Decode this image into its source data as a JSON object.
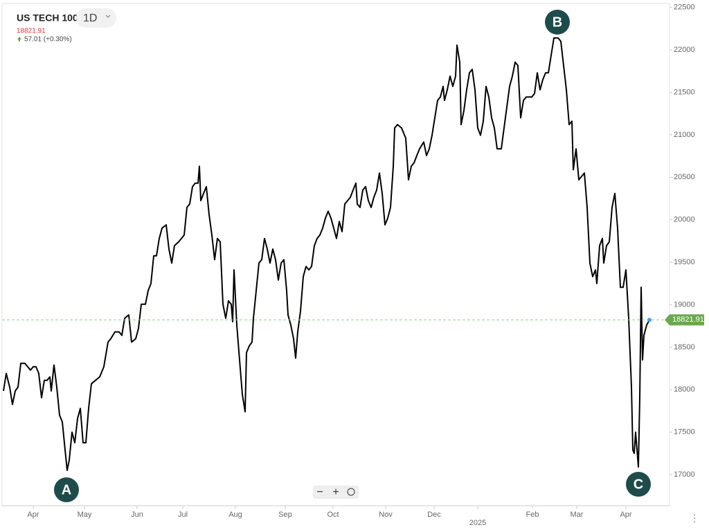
{
  "chart_data": {
    "type": "line",
    "title": "US TECH 100",
    "interval": "1D",
    "last_price": 18821.91,
    "change": "57.01 (+0.30%)",
    "color": "#000000",
    "grid": false,
    "x": [
      5,
      9,
      14,
      18,
      22,
      26,
      30,
      36,
      40,
      44,
      48,
      52,
      56,
      60,
      64,
      68,
      72,
      74,
      78,
      82,
      86,
      90,
      94,
      97,
      100,
      104,
      108,
      112,
      116,
      120,
      124,
      128,
      132,
      138,
      144,
      150,
      156,
      160,
      166,
      172,
      176,
      180,
      186,
      190,
      196,
      200,
      204,
      210,
      214,
      218,
      222,
      226,
      230,
      234,
      240,
      244,
      248,
      252,
      258,
      262,
      266,
      270,
      274,
      278,
      282,
      286,
      288,
      290,
      294,
      298,
      302,
      306,
      310,
      314,
      318,
      322,
      326,
      330,
      334,
      336,
      338,
      342,
      346,
      350,
      354,
      356,
      360,
      364,
      366,
      370,
      374,
      378,
      382,
      386,
      390,
      394,
      398,
      402,
      406,
      410,
      414,
      416,
      420,
      424,
      427,
      430,
      434,
      438,
      442,
      446,
      450,
      454,
      458,
      462,
      466,
      470,
      474,
      478,
      482,
      486,
      490,
      494,
      498,
      502,
      506,
      510,
      514,
      516,
      520,
      524,
      528,
      532,
      536,
      540,
      544,
      548,
      552,
      556,
      560,
      564,
      568,
      570,
      574,
      580,
      586,
      590,
      594,
      598,
      602,
      606,
      612,
      616,
      620,
      624,
      628,
      632,
      636,
      640,
      642,
      646,
      650,
      654,
      658,
      660,
      664,
      666,
      670,
      674,
      678,
      682,
      686,
      690,
      694,
      698,
      702,
      706,
      710,
      714,
      718,
      722,
      724,
      728,
      732,
      736,
      740,
      744,
      748,
      752,
      756,
      760,
      764,
      768,
      772,
      776,
      780,
      784,
      788,
      792,
      796,
      800,
      806,
      810,
      814,
      818,
      822,
      826,
      828,
      832,
      836,
      840,
      844,
      848,
      852,
      856,
      860,
      862,
      866,
      870,
      872,
      876,
      880,
      884,
      888,
      892,
      896,
      900,
      904,
      908,
      912,
      914,
      916,
      918,
      922,
      924,
      926,
      928,
      930,
      934,
      938
    ],
    "values": [
      17985,
      18190,
      18030,
      17825,
      17985,
      18030,
      18310,
      18310,
      18270,
      18230,
      18270,
      18270,
      18190,
      17905,
      18110,
      18110,
      18150,
      17985,
      18290,
      18030,
      17700,
      17620,
      17290,
      17050,
      17170,
      17500,
      17375,
      17660,
      17780,
      17375,
      17375,
      17780,
      18070,
      18110,
      18150,
      18270,
      18560,
      18600,
      18680,
      18680,
      18640,
      18840,
      18880,
      18560,
      18600,
      18720,
      19005,
      19005,
      19165,
      19250,
      19575,
      19575,
      19780,
      19900,
      19940,
      19655,
      19490,
      19695,
      19740,
      19780,
      19820,
      20145,
      20185,
      20390,
      20430,
      20430,
      20630,
      20225,
      20310,
      20390,
      20060,
      19820,
      19530,
      19780,
      19740,
      19005,
      18840,
      19045,
      19005,
      18800,
      19410,
      18760,
      18350,
      17945,
      17740,
      18435,
      18515,
      18560,
      18840,
      19165,
      19490,
      19530,
      19780,
      19655,
      19490,
      19655,
      19530,
      19290,
      19490,
      19530,
      19165,
      18880,
      18760,
      18600,
      18370,
      18680,
      18925,
      19330,
      19450,
      19410,
      19450,
      19695,
      19780,
      19820,
      19900,
      20020,
      20100,
      20020,
      19900,
      19780,
      19980,
      19860,
      20185,
      20225,
      20265,
      20350,
      20430,
      20185,
      20145,
      20350,
      20390,
      20225,
      20145,
      20265,
      20350,
      20550,
      20310,
      19940,
      20020,
      20145,
      20630,
      21080,
      21120,
      21080,
      20960,
      20470,
      20630,
      20670,
      20755,
      20835,
      20915,
      20755,
      20835,
      20995,
      21200,
      21405,
      21445,
      21570,
      21405,
      21530,
      21690,
      21570,
      21690,
      22055,
      21855,
      21120,
      21285,
      21530,
      21730,
      21770,
      21530,
      21080,
      20995,
      21160,
      21570,
      21445,
      21200,
      21080,
      20835,
      20835,
      20835,
      21080,
      21325,
      21570,
      21690,
      21855,
      21815,
      21200,
      21405,
      21445,
      21445,
      21445,
      21485,
      21730,
      21530,
      21650,
      21730,
      21730,
      21935,
      22140,
      22140,
      22100,
      21815,
      21530,
      21120,
      21160,
      20590,
      20835,
      20470,
      20510,
      20550,
      20145,
      19490,
      19330,
      19410,
      19250,
      19695,
      19780,
      19490,
      19695,
      19740,
      20145,
      20310,
      19900,
      19205,
      19205,
      19410,
      18840,
      18030,
      17290,
      17250,
      17500,
      17090,
      17905,
      19205,
      18350,
      18640,
      18760,
      18821.91
    ],
    "xlim": [
      3,
      967
    ],
    "xticks": [
      {
        "value": 48,
        "label": "Apr"
      },
      {
        "value": 122,
        "label": "May"
      },
      {
        "value": 198,
        "label": "Jun"
      },
      {
        "value": 264,
        "label": "Jul"
      },
      {
        "value": 340,
        "label": "Aug"
      },
      {
        "value": 412,
        "label": "Sep"
      },
      {
        "value": 481,
        "label": "Oct"
      },
      {
        "value": 557,
        "label": "Nov"
      },
      {
        "value": 627,
        "label": "Dec"
      },
      {
        "value": 690,
        "label": "2025"
      },
      {
        "value": 769,
        "label": "Feb"
      },
      {
        "value": 833,
        "label": "Mar"
      },
      {
        "value": 904,
        "label": "Apr"
      }
    ],
    "ylim": [
      16634,
      22546
    ],
    "yticks": [
      17000,
      17500,
      18000,
      18500,
      19000,
      19500,
      20000,
      20500,
      21000,
      21500,
      22000,
      22500
    ],
    "annotations": [
      "A",
      "B",
      "C"
    ]
  }
}
